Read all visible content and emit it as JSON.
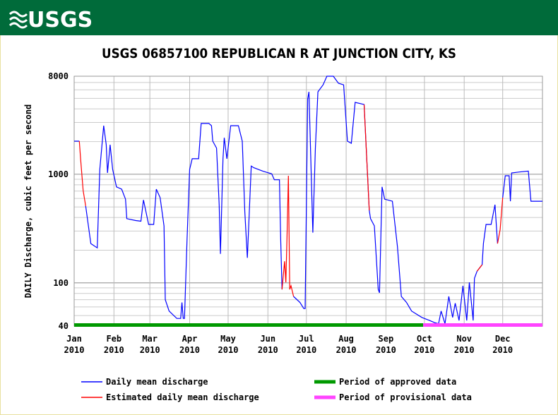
{
  "header": {
    "logo": "USGS"
  },
  "chart_data": {
    "type": "line",
    "title": "USGS 06857100 REPUBLICAN R AT JUNCTION CITY, KS",
    "y_label": "DAILY Discharge, cubic feet per second",
    "log_y": true,
    "grid": true,
    "xlim": [
      0,
      365
    ],
    "xticks": [
      {
        "value": 0,
        "label": "Jan 2010"
      },
      {
        "value": 31,
        "label": "Feb 2010"
      },
      {
        "value": 59,
        "label": "Mar 2010"
      },
      {
        "value": 90,
        "label": "Apr 2010"
      },
      {
        "value": 120,
        "label": "May 2010"
      },
      {
        "value": 151,
        "label": "Jun 2010"
      },
      {
        "value": 181,
        "label": "Jul 2010"
      },
      {
        "value": 212,
        "label": "Aug 2010"
      },
      {
        "value": 243,
        "label": "Sep 2010"
      },
      {
        "value": 273,
        "label": "Oct 2010"
      },
      {
        "value": 304,
        "label": "Nov 2010"
      },
      {
        "value": 334,
        "label": "Dec 2010"
      }
    ],
    "ylim": [
      40,
      8000
    ],
    "yticks": [
      40,
      100,
      1000,
      8000
    ],
    "x": [
      0,
      4,
      5,
      7,
      9,
      13,
      18,
      20,
      23,
      25,
      26,
      28,
      30,
      33,
      37,
      40,
      41,
      48,
      52,
      54,
      56,
      58,
      62,
      64,
      67,
      70,
      71,
      74,
      80,
      83,
      84,
      85,
      86,
      88,
      90,
      92,
      97,
      99,
      105,
      107,
      108,
      111,
      113,
      114,
      116,
      117,
      119,
      122,
      128,
      131,
      133,
      135,
      138,
      140,
      147,
      154,
      156,
      160,
      161,
      162,
      164,
      165,
      166,
      167,
      168,
      169,
      171,
      176,
      179,
      180,
      182,
      183,
      186,
      188,
      190,
      194,
      197,
      202,
      206,
      210,
      213,
      216,
      219,
      226,
      230,
      231,
      234,
      237,
      238,
      240,
      242,
      248,
      252,
      255,
      259,
      263,
      271,
      277,
      281,
      284,
      286,
      289,
      292,
      295,
      297,
      300,
      303,
      306,
      308,
      311,
      312,
      314,
      318,
      319,
      321,
      325,
      328,
      330,
      332,
      334,
      336,
      339,
      340,
      341,
      347,
      354,
      356,
      361,
      365
    ],
    "series": [
      {
        "name": "Daily mean discharge",
        "color": "#0000ff",
        "values": [
          2020,
          2020,
          null,
          null,
          510,
          230,
          210,
          1110,
          2800,
          1870,
          1030,
          1870,
          1110,
          765,
          730,
          590,
          390,
          375,
          370,
          580,
          450,
          345,
          345,
          730,
          610,
          335,
          70,
          55,
          47,
          47,
          66,
          47,
          47,
          250,
          1110,
          1390,
          1390,
          2940,
          2940,
          2800,
          2020,
          1740,
          525,
          185,
          1390,
          2170,
          1390,
          2800,
          2800,
          2020,
          450,
          170,
          1190,
          1150,
          1070,
          1010,
          890,
          890,
          250,
          87,
          null,
          null,
          null,
          null,
          null,
          null,
          75,
          66,
          58,
          58,
          4950,
          5750,
          290,
          1740,
          5750,
          6660,
          8000,
          8000,
          6890,
          6660,
          2020,
          1930,
          4600,
          4390,
          465,
          390,
          335,
          87,
          81,
          765,
          590,
          565,
          215,
          75,
          66,
          55,
          48,
          45,
          43,
          42,
          55,
          42,
          75,
          48,
          65,
          45,
          94,
          45,
          101,
          45,
          110,
          128,
          147,
          230,
          345,
          345,
          525,
          230,
          null,
          610,
          970,
          970,
          565,
          1030,
          1050,
          1070,
          565,
          565,
          565
        ]
      },
      {
        "name": "Estimated daily mean discharge",
        "color": "#ff0000",
        "values": [
          null,
          2020,
          1390,
          710,
          510,
          null,
          null,
          null,
          null,
          null,
          null,
          null,
          null,
          null,
          null,
          null,
          null,
          null,
          null,
          null,
          null,
          null,
          null,
          null,
          null,
          null,
          null,
          null,
          null,
          null,
          null,
          null,
          null,
          null,
          null,
          null,
          null,
          null,
          null,
          null,
          null,
          null,
          null,
          null,
          null,
          null,
          null,
          null,
          null,
          null,
          null,
          null,
          null,
          null,
          null,
          null,
          null,
          null,
          null,
          87,
          158,
          101,
          290,
          970,
          87,
          94,
          75,
          null,
          null,
          null,
          null,
          null,
          null,
          null,
          null,
          null,
          null,
          null,
          null,
          null,
          null,
          null,
          null,
          4390,
          465,
          null,
          null,
          null,
          null,
          null,
          null,
          null,
          null,
          null,
          null,
          null,
          null,
          null,
          null,
          null,
          null,
          null,
          null,
          null,
          null,
          null,
          null,
          null,
          null,
          null,
          null,
          128,
          147,
          null,
          null,
          null,
          null,
          230,
          310,
          610,
          null,
          null,
          null,
          null,
          null,
          null,
          null,
          null,
          null
        ]
      }
    ],
    "periods": [
      {
        "name": "Period of approved data",
        "color": "#009900",
        "start": 0,
        "end": 272
      },
      {
        "name": "Period of provisional data",
        "color": "#ff44ff",
        "start": 272,
        "end": 365
      }
    ]
  }
}
